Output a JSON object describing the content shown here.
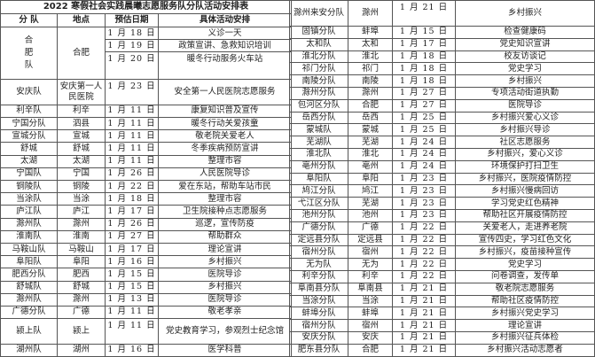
{
  "title": "2022 寒假社会实践晨曦志愿服务队分队活动安排表",
  "headers": [
    "分 队",
    "地点",
    "预估日期",
    "具体活动安排"
  ],
  "hefei_group": {
    "team": "合肥队",
    "location": "合肥",
    "entries": [
      {
        "date": "1 月 18 日",
        "activity": "义诊一天"
      },
      {
        "date": "1 月 19 日",
        "activity": "政策宣讲、急救知识培训"
      },
      {
        "date": "1 月 20 日",
        "activity": "暖冬行动服务火车站"
      }
    ]
  },
  "left_rows": [
    {
      "team": "安庆队",
      "location": "安庆第一人民医院",
      "date": "1 月 23 日",
      "activity": "安全第一人民医院志愿服务"
    },
    {
      "team": "利辛队",
      "location": "利辛",
      "date": "1 月 11 日",
      "activity": "康复知识普及宣传"
    },
    {
      "team": "宁国分队",
      "location": "泗县",
      "date": "1 月 11 日",
      "activity": "暖冬行动关爱孩童"
    },
    {
      "team": "宣城分队",
      "location": "宣城",
      "date": "1 月 11 日",
      "activity": "敬老院关爱老人"
    },
    {
      "team": "舒城",
      "location": "舒城",
      "date": "1 月 11 日",
      "activity": "冬季疾病预防宣讲"
    },
    {
      "team": "太湖",
      "location": "太湖",
      "date": "1 月 11 日",
      "activity": "整理市容"
    },
    {
      "team": "宁国队",
      "location": "宁国",
      "date": "1 月 26 日",
      "activity": "人民医院导诊"
    },
    {
      "team": "铜陵队",
      "location": "铜陵",
      "date": "1 月 22 日",
      "activity": "爱在东站，帮助车站市民"
    },
    {
      "team": "当涂队",
      "location": "当涂",
      "date": "1 月 18 日",
      "activity": "整理市容"
    },
    {
      "team": "庐江队",
      "location": "庐江",
      "date": "1 月 17 日",
      "activity": "卫生院接种点志愿服务"
    },
    {
      "team": "滁州队",
      "location": "滁州",
      "date": "1 月 26 日",
      "activity": "巡逻，宣传防疫"
    },
    {
      "team": "淮南队",
      "location": "淮南",
      "date": "1 月 27 日",
      "activity": "帮助群众"
    },
    {
      "team": "马鞍山队",
      "location": "马鞍山",
      "date": "1 月 17 日",
      "activity": "理论宣讲"
    },
    {
      "team": "阜阳队",
      "location": "阜阳",
      "date": "1 月 16 日",
      "activity": "乡村振兴"
    },
    {
      "team": "肥西分队",
      "location": "肥西",
      "date": "1 月 15 日",
      "activity": "医院导诊"
    },
    {
      "team": "舒城队",
      "location": "舒城",
      "date": "1 月 15 日",
      "activity": "乡村振兴"
    },
    {
      "team": "滁州队",
      "location": "滁州",
      "date": "1 月 13 日",
      "activity": "医院导诊"
    },
    {
      "team": "广德分队",
      "location": "广德",
      "date": "1 月 11 日",
      "activity": "敬老孝亲"
    },
    {
      "team": "颍上队",
      "location": "颍上",
      "date": "1 月 11 日",
      "activity": "党史教育学习，参观烈士纪念馆"
    },
    {
      "team": "湖州队",
      "location": "湖州",
      "date": "1 月 16 日",
      "activity": "医学科普"
    }
  ],
  "right_rows": [
    {
      "team": "滁州来安分队",
      "location": "滁州",
      "date": "1 月 21 日",
      "activity": "乡村振兴"
    },
    {
      "team": "固镇分队",
      "location": "蚌埠",
      "date": "1 月 15 日",
      "activity": "检查健康码"
    },
    {
      "team": "太和队",
      "location": "太和",
      "date": "1 月 17 日",
      "activity": "党史知识宣讲"
    },
    {
      "team": "淮北分队",
      "location": "淮北",
      "date": "1 月 18 日",
      "activity": "校友访谈记"
    },
    {
      "team": "祁门分队",
      "location": "祁门",
      "date": "1 月 18 日",
      "activity": "党史学习"
    },
    {
      "team": "南陵分队",
      "location": "南陵",
      "date": "1 月 18 日",
      "activity": "乡村振兴"
    },
    {
      "team": "滁州分队",
      "location": "滁州",
      "date": "1 月 27 日",
      "activity": "专项活动街道执勤"
    },
    {
      "team": "包河区分队",
      "location": "合肥",
      "date": "1 月 27 日",
      "activity": "医院导诊"
    },
    {
      "team": "岳西分队",
      "location": "岳西",
      "date": "1 月 25 日",
      "activity": "乡村振兴爱心义诊"
    },
    {
      "team": "蒙城队",
      "location": "蒙城",
      "date": "1 月 25 日",
      "activity": "乡村振兴导诊"
    },
    {
      "team": "芜湖队",
      "location": "芜湖",
      "date": "1 月 24 日",
      "activity": "社区志愿服务"
    },
    {
      "team": "淮北队",
      "location": "淮北",
      "date": "1 月 24 日",
      "activity": "乡村振兴，爱心义诊"
    },
    {
      "team": "亳州分队",
      "location": "亳州",
      "date": "1 月 24 日",
      "activity": "环境保护打扫卫生"
    },
    {
      "team": "阜阳队",
      "location": "阜阳",
      "date": "1 月 23 日",
      "activity": "乡村振兴，医院疫情防控"
    },
    {
      "team": "鸠江分队",
      "location": "鸠江",
      "date": "1 月 23 日",
      "activity": "乡村振兴慢病回访"
    },
    {
      "team": "弋江区分队",
      "location": "芜湖",
      "date": "1 月 23 日",
      "activity": "学习党史红色精神"
    },
    {
      "team": "池州分队",
      "location": "池州",
      "date": "1 月 23 日",
      "activity": "帮助社区开展疫情防控"
    },
    {
      "team": "广德分队",
      "location": "广德",
      "date": "1 月 22 日",
      "activity": "关爱老人，走进养老院"
    },
    {
      "team": "定远县分队",
      "location": "定远县",
      "date": "1 月 22 日",
      "activity": "宣传四史，学习红色文化"
    },
    {
      "team": "宿州分队",
      "location": "宿州",
      "date": "1 月 22 日",
      "activity": "乡村振兴，疫苗接种宣传"
    },
    {
      "team": "无为队",
      "location": "无为",
      "date": "1 月 22 日",
      "activity": "党史学习"
    },
    {
      "team": "利辛分队",
      "location": "利辛",
      "date": "1 月 22 日",
      "activity": "问卷调查，发传单"
    },
    {
      "team": "阜南县分队",
      "location": "阜南县",
      "date": "1 月 21 日",
      "activity": "敬老院志愿服务"
    },
    {
      "team": "当涂分队",
      "location": "当涂",
      "date": "1 月 21 日",
      "activity": "帮助社区疫情防控"
    },
    {
      "team": "蚌埠分队",
      "location": "蚌埠",
      "date": "1 月 21 日",
      "activity": "乡村振兴党史学习"
    },
    {
      "team": "宿州分队",
      "location": "宿州",
      "date": "1 月 21 日",
      "activity": "理论宣讲"
    },
    {
      "team": "安庆分队",
      "location": "安庆",
      "date": "1 月 21 日",
      "activity": "乡村振兴征兵体检"
    },
    {
      "team": "肥东县分队",
      "location": "合肥",
      "date": "1 月 21 日",
      "activity": "乡村振兴活动志愿者"
    }
  ]
}
